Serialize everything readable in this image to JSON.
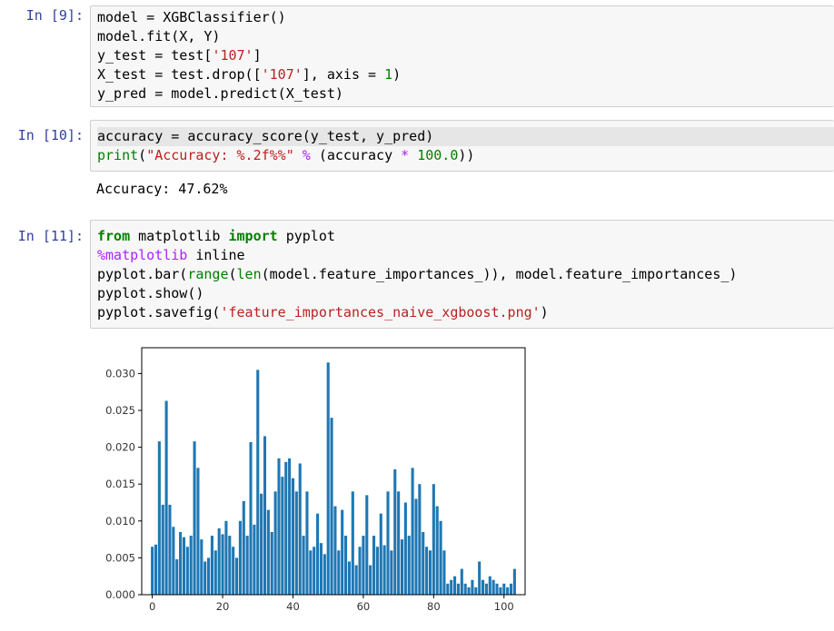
{
  "cells": [
    {
      "prompt": "In [9]:",
      "lines": [
        [
          {
            "t": "model = XGBClassifier()"
          }
        ],
        [
          {
            "t": "model.fit(X, Y)"
          }
        ],
        [
          {
            "t": "y_test = test["
          },
          {
            "t": "'107'",
            "c": "str"
          },
          {
            "t": "]"
          }
        ],
        [
          {
            "t": "X_test = test.drop(["
          },
          {
            "t": "'107'",
            "c": "str"
          },
          {
            "t": "], axis = "
          },
          {
            "t": "1",
            "c": "num"
          },
          {
            "t": ")"
          }
        ],
        [
          {
            "t": "y_pred = model.predict(X_test)"
          }
        ]
      ]
    },
    {
      "prompt": "In [10]:",
      "lines": [
        [
          {
            "t": "accuracy = accuracy_score(y_test, y_pred)"
          }
        ],
        [
          {
            "t": "print",
            "c": "bi"
          },
          {
            "t": "("
          },
          {
            "t": "\"Accuracy: %.2f%%\"",
            "c": "str"
          },
          {
            "t": " "
          },
          {
            "t": "%",
            "c": "op"
          },
          {
            "t": " (accuracy "
          },
          {
            "t": "*",
            "c": "op"
          },
          {
            "t": " "
          },
          {
            "t": "100.0",
            "c": "num"
          },
          {
            "t": "))"
          }
        ]
      ],
      "output": "Accuracy: 47.62%"
    },
    {
      "prompt": "In [11]:",
      "lines": [
        [
          {
            "t": "from",
            "c": "kw"
          },
          {
            "t": " matplotlib "
          },
          {
            "t": "import",
            "c": "kw"
          },
          {
            "t": " pyplot"
          }
        ],
        [
          {
            "t": "%matplotlib",
            "c": "magic"
          },
          {
            "t": " inline"
          }
        ],
        [
          {
            "t": "pyplot.bar("
          },
          {
            "t": "range",
            "c": "bi"
          },
          {
            "t": "("
          },
          {
            "t": "len",
            "c": "bi"
          },
          {
            "t": "(model.feature_importances_)), model.feature_importances_)"
          }
        ],
        [
          {
            "t": "pyplot.show()"
          }
        ],
        [
          {
            "t": "pyplot.savefig("
          },
          {
            "t": "'feature_importances_naive_xgboost.png'",
            "c": "str"
          },
          {
            "t": ")"
          }
        ]
      ]
    }
  ],
  "chart_data": {
    "type": "bar",
    "title": "",
    "xlabel": "",
    "ylabel": "",
    "xlim": [
      -3,
      106
    ],
    "ylim": [
      0,
      0.0335
    ],
    "xticks": [
      0,
      20,
      40,
      60,
      80,
      100
    ],
    "yticks": [
      0.0,
      0.005,
      0.01,
      0.015,
      0.02,
      0.025,
      0.03
    ],
    "ytick_labels": [
      "0.000",
      "0.005",
      "0.010",
      "0.015",
      "0.020",
      "0.025",
      "0.030"
    ],
    "color": "#1f77b4",
    "grid": false,
    "x": [
      0,
      1,
      2,
      3,
      4,
      5,
      6,
      7,
      8,
      9,
      10,
      11,
      12,
      13,
      14,
      15,
      16,
      17,
      18,
      19,
      20,
      21,
      22,
      23,
      24,
      25,
      26,
      27,
      28,
      29,
      30,
      31,
      32,
      33,
      34,
      35,
      36,
      37,
      38,
      39,
      40,
      41,
      42,
      43,
      44,
      45,
      46,
      47,
      48,
      49,
      50,
      51,
      52,
      53,
      54,
      55,
      56,
      57,
      58,
      59,
      60,
      61,
      62,
      63,
      64,
      65,
      66,
      67,
      68,
      69,
      70,
      71,
      72,
      73,
      74,
      75,
      76,
      77,
      78,
      79,
      80,
      81,
      82,
      83,
      84,
      85,
      86,
      87,
      88,
      89,
      90,
      91,
      92,
      93,
      94,
      95,
      96,
      97,
      98,
      99,
      100,
      101,
      102,
      103
    ],
    "values": [
      0.0065,
      0.0068,
      0.0208,
      0.0122,
      0.0263,
      0.0122,
      0.0092,
      0.0048,
      0.0085,
      0.0078,
      0.0065,
      0.008,
      0.0208,
      0.0172,
      0.0075,
      0.0045,
      0.005,
      0.008,
      0.006,
      0.009,
      0.0082,
      0.01,
      0.008,
      0.0065,
      0.005,
      0.01,
      0.0127,
      0.008,
      0.0207,
      0.0095,
      0.0305,
      0.0137,
      0.0215,
      0.0115,
      0.0085,
      0.014,
      0.0185,
      0.016,
      0.018,
      0.0185,
      0.0158,
      0.014,
      0.0178,
      0.008,
      0.014,
      0.006,
      0.0065,
      0.011,
      0.007,
      0.0055,
      0.0315,
      0.024,
      0.012,
      0.006,
      0.0115,
      0.008,
      0.0045,
      0.014,
      0.004,
      0.0065,
      0.008,
      0.0135,
      0.004,
      0.008,
      0.0065,
      0.011,
      0.0067,
      0.014,
      0.006,
      0.017,
      0.014,
      0.0075,
      0.0125,
      0.008,
      0.0172,
      0.013,
      0.015,
      0.0085,
      0.0065,
      0.006,
      0.015,
      0.012,
      0.01,
      0.006,
      0.0015,
      0.002,
      0.0025,
      0.0015,
      0.0035,
      0.0015,
      0.001,
      0.002,
      0.001,
      0.0045,
      0.002,
      0.0015,
      0.0025,
      0.002,
      0.0015,
      0.001,
      0.0015,
      0.001,
      0.0015,
      0.0035
    ]
  }
}
